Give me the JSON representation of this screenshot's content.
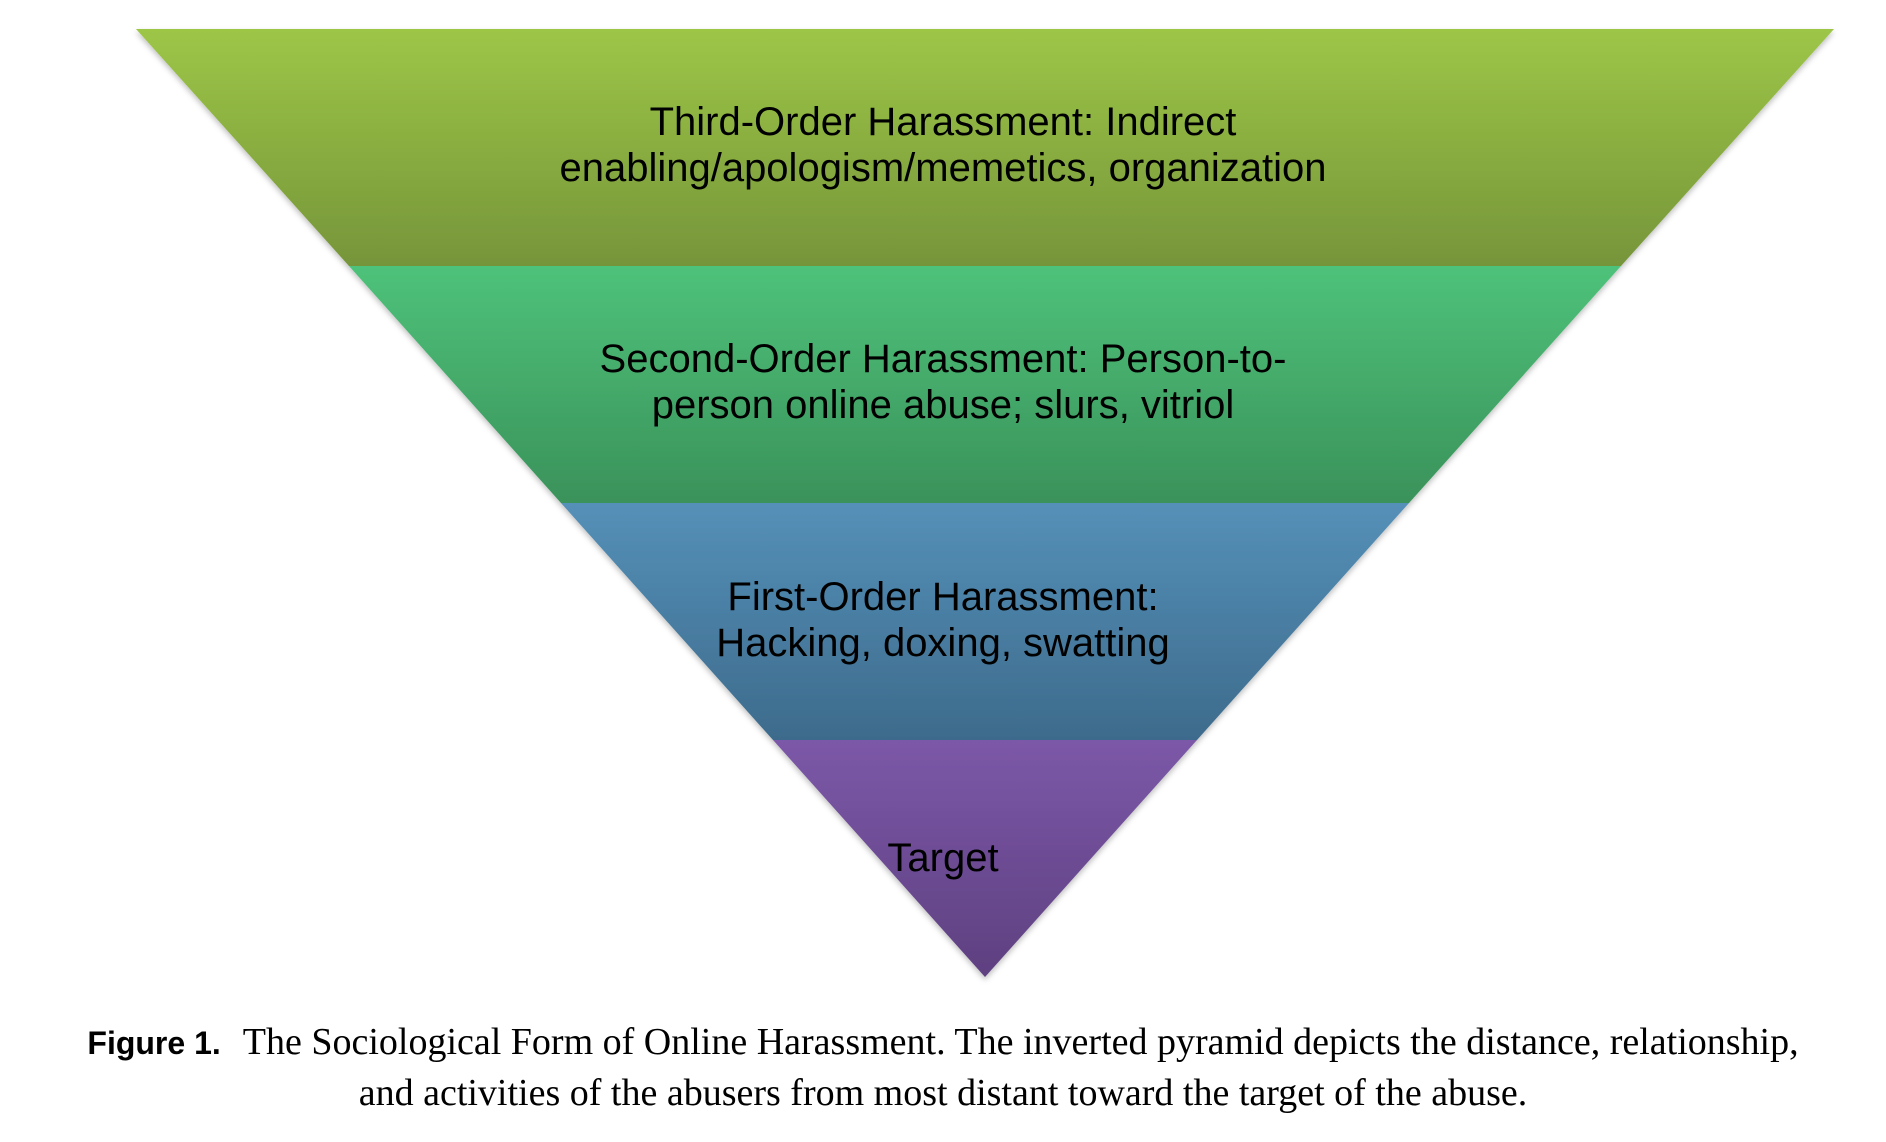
{
  "diagram": {
    "layers": [
      {
        "line1": "Third-Order Harassment: Indirect",
        "line2": "enabling/apologism/memetics, organization",
        "color_top": "#9dc647",
        "color_bottom": "#76953a"
      },
      {
        "line1": "Second-Order Harassment: Person-to-",
        "line2": "person online abuse; slurs, vitriol",
        "color_top": "#4ec27a",
        "color_bottom": "#3a925a"
      },
      {
        "line1": "First-Order Harassment:",
        "line2": "Hacking, doxing, swatting",
        "color_top": "#5590b8",
        "color_bottom": "#3d6b8c"
      },
      {
        "line1": "Target",
        "color_top": "#7c58a8",
        "color_bottom": "#5e4080"
      }
    ]
  },
  "caption": {
    "label": "Figure 1.",
    "text": "The Sociological Form of Online Harassment. The inverted pyramid depicts the distance, relationship, and activities of the abusers from most distant toward the target of the abuse."
  }
}
